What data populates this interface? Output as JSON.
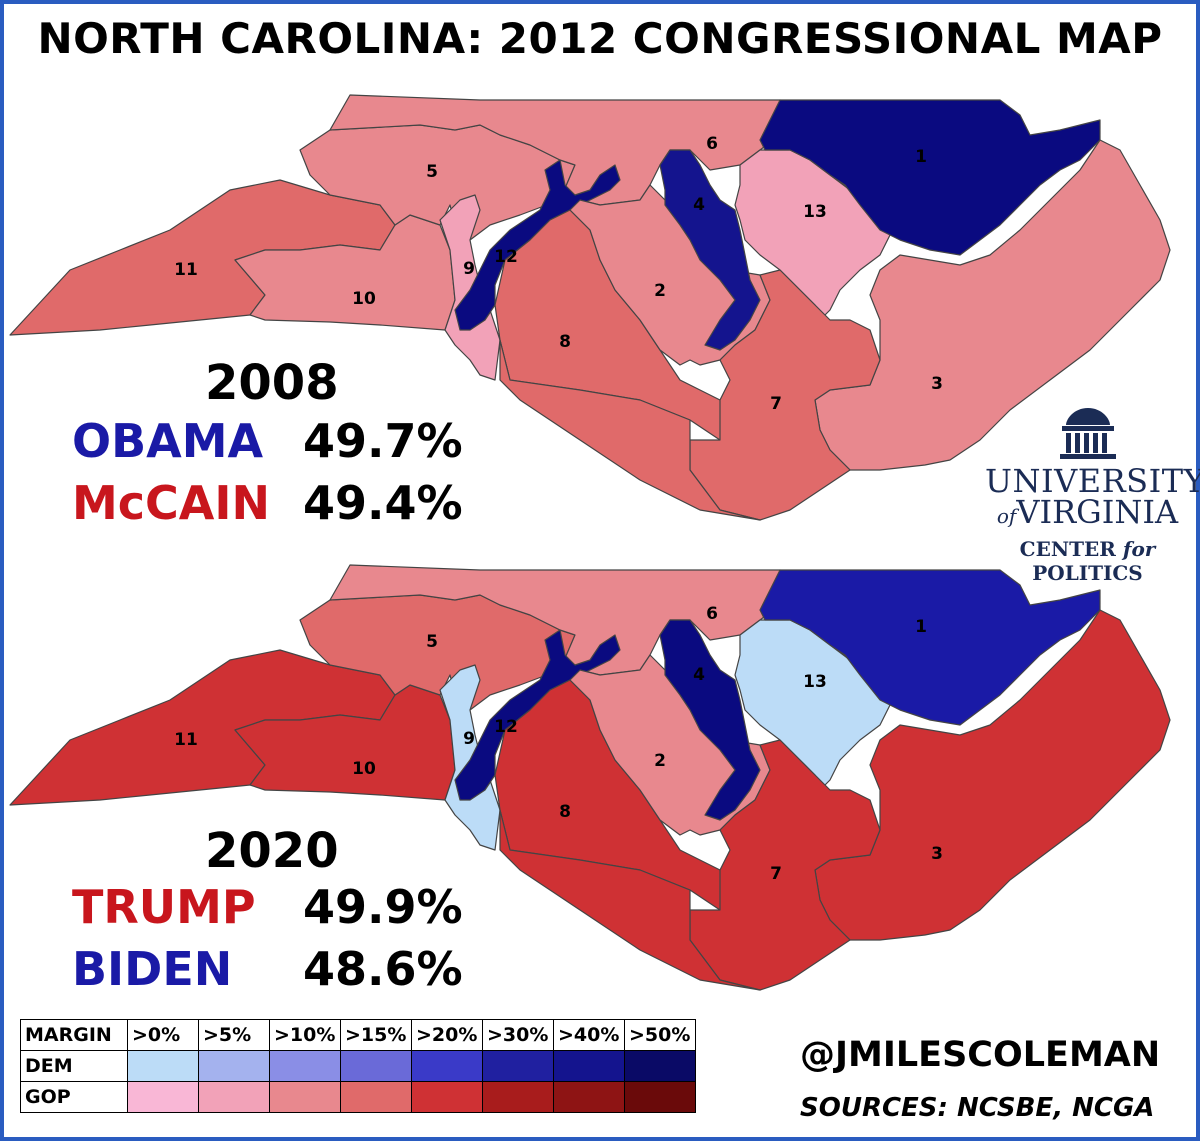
{
  "title": "NORTH CAROLINA: 2012 CONGRESSIONAL MAP",
  "map_2008": {
    "year": "2008",
    "first_candidate": "OBAMA",
    "first_pct": "49.7%",
    "second_candidate": "McCAIN",
    "second_pct": "49.4%",
    "districts": [
      {
        "label": "1",
        "party": "DEM",
        "margin": ">50%",
        "color": "#0a0a80"
      },
      {
        "label": "2",
        "party": "GOP",
        "margin": ">10%",
        "color": "#e8888e"
      },
      {
        "label": "3",
        "party": "GOP",
        "margin": ">10%",
        "color": "#e8888e"
      },
      {
        "label": "4",
        "party": "DEM",
        "margin": ">40%",
        "color": "#14148e"
      },
      {
        "label": "5",
        "party": "GOP",
        "margin": ">10%",
        "color": "#e8888e"
      },
      {
        "label": "6",
        "party": "GOP",
        "margin": ">10%",
        "color": "#e8888e"
      },
      {
        "label": "7",
        "party": "GOP",
        "margin": ">15%",
        "color": "#e06a6a"
      },
      {
        "label": "8",
        "party": "GOP",
        "margin": ">15%",
        "color": "#e06a6a"
      },
      {
        "label": "9",
        "party": "GOP",
        "margin": ">5%",
        "color": "#f2a2b8"
      },
      {
        "label": "10",
        "party": "GOP",
        "margin": ">10%",
        "color": "#e8888e"
      },
      {
        "label": "11",
        "party": "GOP",
        "margin": ">15%",
        "color": "#e06a6a"
      },
      {
        "label": "12",
        "party": "DEM",
        "margin": ">50%",
        "color": "#0a0a80"
      },
      {
        "label": "13",
        "party": "GOP",
        "margin": ">5%",
        "color": "#f2a2b8"
      }
    ]
  },
  "map_2020": {
    "year": "2020",
    "first_candidate": "TRUMP",
    "first_pct": "49.9%",
    "second_candidate": "BIDEN",
    "second_pct": "48.6%",
    "districts": [
      {
        "label": "1",
        "party": "DEM",
        "margin": ">40%",
        "color": "#1a1aa6"
      },
      {
        "label": "2",
        "party": "GOP",
        "margin": ">10%",
        "color": "#e8888e"
      },
      {
        "label": "3",
        "party": "GOP",
        "margin": ">20%",
        "color": "#cf3134"
      },
      {
        "label": "4",
        "party": "DEM",
        "margin": ">50%",
        "color": "#0a0a80"
      },
      {
        "label": "5",
        "party": "GOP",
        "margin": ">15%",
        "color": "#e06a6a"
      },
      {
        "label": "6",
        "party": "GOP",
        "margin": ">10%",
        "color": "#e8888e"
      },
      {
        "label": "7",
        "party": "GOP",
        "margin": ">20%",
        "color": "#cf3134"
      },
      {
        "label": "8",
        "party": "GOP",
        "margin": ">20%",
        "color": "#cf3134"
      },
      {
        "label": "9",
        "party": "DEM",
        "margin": ">0%",
        "color": "#bcdcf7"
      },
      {
        "label": "10",
        "party": "GOP",
        "margin": ">20%",
        "color": "#cf3134"
      },
      {
        "label": "11",
        "party": "GOP",
        "margin": ">20%",
        "color": "#cf3134"
      },
      {
        "label": "12",
        "party": "DEM",
        "margin": ">50%",
        "color": "#0a0a80"
      },
      {
        "label": "13",
        "party": "DEM",
        "margin": ">0%",
        "color": "#bcdcf7"
      }
    ]
  },
  "branding": {
    "uva_line1": "UNIVERSITY",
    "uva_of": "of",
    "uva_line2": "VIRGINIA",
    "uva_center": "CENTER",
    "uva_for": "for",
    "uva_politics": "POLITICS",
    "handle": "@JMILESCOLEMAN",
    "sources": "SOURCES: NCSBE, NCGA"
  },
  "legend": {
    "margin_label": "MARGIN",
    "dem_label": "DEM",
    "gop_label": "GOP",
    "thresholds": [
      ">0%",
      ">5%",
      ">10%",
      ">15%",
      ">20%",
      ">30%",
      ">40%",
      ">50%"
    ],
    "dem_colors": [
      "#bcdcf7",
      "#a4b2ee",
      "#8a8ee6",
      "#6a6ad8",
      "#3a3ac8",
      "#2020a0",
      "#14148e",
      "#0a0a66"
    ],
    "gop_colors": [
      "#f9b7d6",
      "#f2a2b8",
      "#e8888e",
      "#e06a6a",
      "#cf3134",
      "#a81c1c",
      "#8e1414",
      "#6a0a0a"
    ]
  }
}
